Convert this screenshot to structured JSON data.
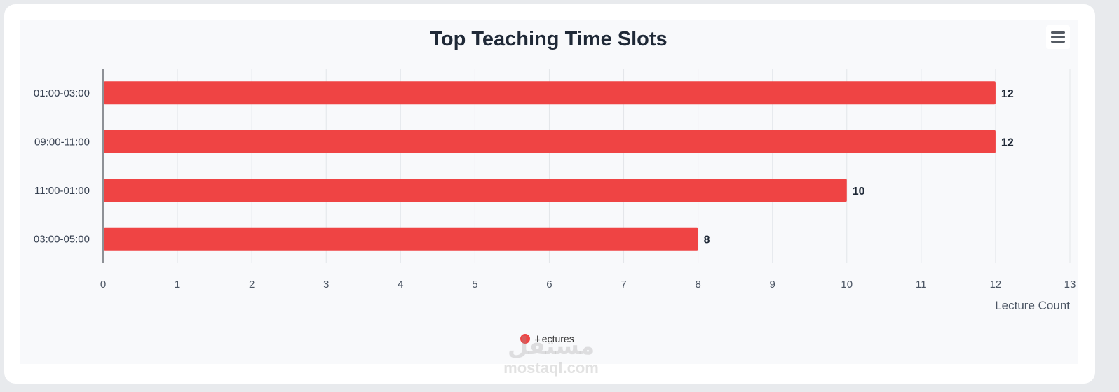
{
  "chart_data": {
    "type": "bar",
    "orientation": "horizontal",
    "title": "Top Teaching Time Slots",
    "categories": [
      "01:00-03:00",
      "09:00-11:00",
      "11:00-01:00",
      "03:00-05:00"
    ],
    "series": [
      {
        "name": "Lectures",
        "values": [
          12,
          12,
          10,
          8
        ],
        "color": "#ef4444"
      }
    ],
    "xlabel": "Lecture Count",
    "ylabel": "",
    "xlim": [
      0,
      13
    ],
    "x_ticks": [
      "0",
      "1",
      "2",
      "3",
      "4",
      "5",
      "6",
      "7",
      "8",
      "9",
      "10",
      "11",
      "12",
      "13"
    ],
    "grid": true,
    "data_labels": true,
    "legend": "bottom-center"
  },
  "toolbar": {
    "menu_icon": "hamburger-menu-icon"
  },
  "watermark": {
    "logo": "مستقل",
    "text": "mostaql.com"
  },
  "colors": {
    "bar": "#ef4444",
    "panel": "#f8f9fb",
    "title": "#1f2937"
  }
}
